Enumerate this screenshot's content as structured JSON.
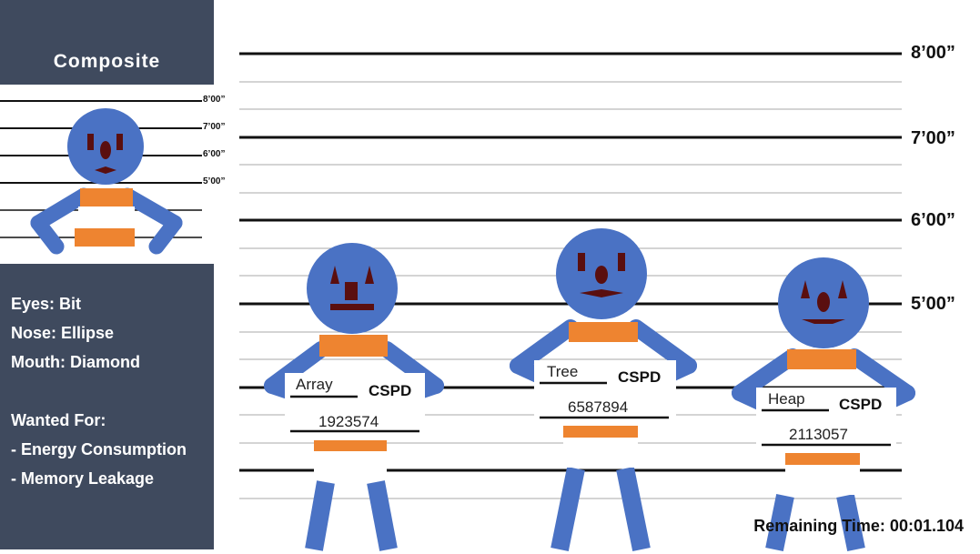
{
  "composite": {
    "title": "Composite",
    "height_marks": [
      "8’00”",
      "7’00”",
      "6’00”",
      "5’00”"
    ]
  },
  "traits": {
    "eyes": "Eyes: Bit",
    "nose": "Nose: Ellipse",
    "mouth": "Mouth: Diamond",
    "wanted_for": "Wanted For:",
    "crimes": [
      "- Energy Consumption",
      "- Memory Leakage"
    ]
  },
  "lineup": {
    "height_marks": [
      "8’00”",
      "7’00”",
      "6’00”",
      "5’00”"
    ],
    "suspects": [
      {
        "name": "Array",
        "department": "CSPD",
        "number": "1923574"
      },
      {
        "name": "Tree",
        "department": "CSPD",
        "number": "6587894"
      },
      {
        "name": "Heap",
        "department": "CSPD",
        "number": "2113057"
      }
    ]
  },
  "timer": "Remaining Time: 00:01.104",
  "colors": {
    "sidebar": "#3f4a5e",
    "body_blue": "#4a72c4",
    "shirt_orange": "#ee8430",
    "feature_dark_red": "#5a0f0f"
  }
}
